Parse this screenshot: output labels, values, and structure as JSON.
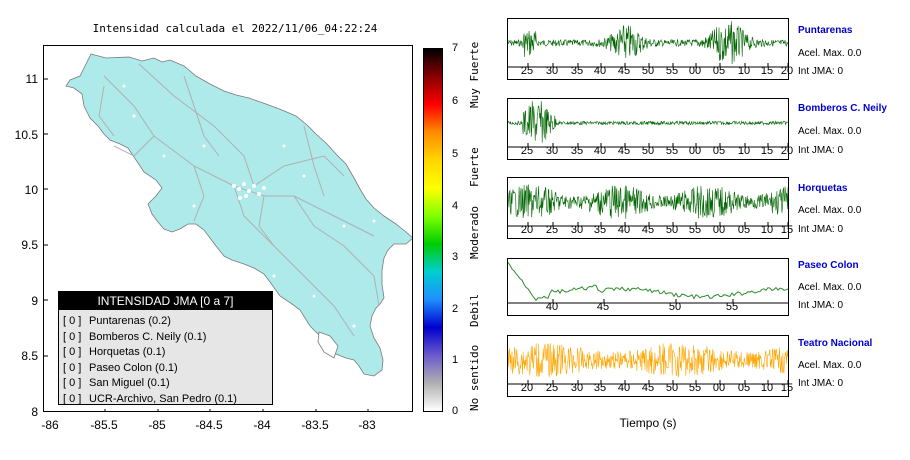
{
  "map": {
    "title": "Intensidad calculada el 2022/11/06_04:22:24",
    "y_ticks": [
      "11",
      "10.5",
      "10",
      "9.5",
      "9",
      "8.5",
      "8"
    ],
    "x_ticks": [
      "-86",
      "-85.5",
      "-85",
      "-84.5",
      "-84",
      "-83.5",
      "-83"
    ],
    "land_color": "#aeeaea",
    "road_color": "#b8b8b8"
  },
  "legend": {
    "title": "INTENSIDAD JMA [0 a 7]",
    "items": [
      {
        "level": "[ 0 ]",
        "label": "Puntarenas (0.2)"
      },
      {
        "level": "[ 0 ]",
        "label": "Bomberos C. Neily (0.1)"
      },
      {
        "level": "[ 0 ]",
        "label": "Horquetas (0.1)"
      },
      {
        "level": "[ 0 ]",
        "label": "Paseo Colon (0.1)"
      },
      {
        "level": "[ 0 ]",
        "label": "San Miguel (0.1)"
      },
      {
        "level": "[ 0 ]",
        "label": "UCR-Archivo, San Pedro (0.1)"
      }
    ]
  },
  "colorbar": {
    "ticks": [
      "7",
      "6",
      "5",
      "4",
      "3",
      "2",
      "1",
      "0"
    ],
    "labels": [
      "Muy Fuerte",
      "Fuerte",
      "Moderado",
      "Debil",
      "No sentido"
    ],
    "stops": [
      "#000000",
      "#8b0000",
      "#ff0000",
      "#ff8c00",
      "#ffd700",
      "#ffff00",
      "#7fff00",
      "#00cd00",
      "#00ced1",
      "#1e90ff",
      "#0000cd",
      "#6a5acd",
      "#b0b0b0",
      "#ffffff"
    ]
  },
  "stations": [
    {
      "name": "Puntarenas",
      "accel": "Acel. Max. 0.0",
      "jma": "Int JMA: 0",
      "color": "#006400",
      "ticks": [
        "25",
        "30",
        "35",
        "40",
        "45",
        "50",
        "55",
        "00",
        "05",
        "10",
        "15",
        "20"
      ]
    },
    {
      "name": "Bomberos C. Neily",
      "accel": "Acel. Max. 0.0",
      "jma": "Int JMA: 0",
      "color": "#006400",
      "ticks": [
        "25",
        "30",
        "35",
        "40",
        "45",
        "50",
        "55",
        "00",
        "05",
        "10",
        "15",
        "20"
      ]
    },
    {
      "name": "Horquetas",
      "accel": "Acel. Max. 0.0",
      "jma": "Int JMA: 0",
      "color": "#006400",
      "ticks": [
        "20",
        "25",
        "30",
        "35",
        "40",
        "45",
        "50",
        "55",
        "00",
        "05",
        "10",
        "15"
      ]
    },
    {
      "name": "Paseo Colon",
      "accel": "Acel. Max. 0.0",
      "jma": "Int JMA: 0",
      "color": "#2e8b2e",
      "ticks": [
        "40",
        "45",
        "50",
        "55"
      ]
    },
    {
      "name": "Teatro Nacional",
      "accel": "Acel. Max. 0.0",
      "jma": "Int JMA: 0",
      "color": "#ffa500",
      "ticks": [
        "20",
        "25",
        "30",
        "35",
        "40",
        "45",
        "50",
        "55",
        "00",
        "05",
        "10",
        "15"
      ]
    }
  ],
  "time_axis_label": "Tiempo (s)"
}
